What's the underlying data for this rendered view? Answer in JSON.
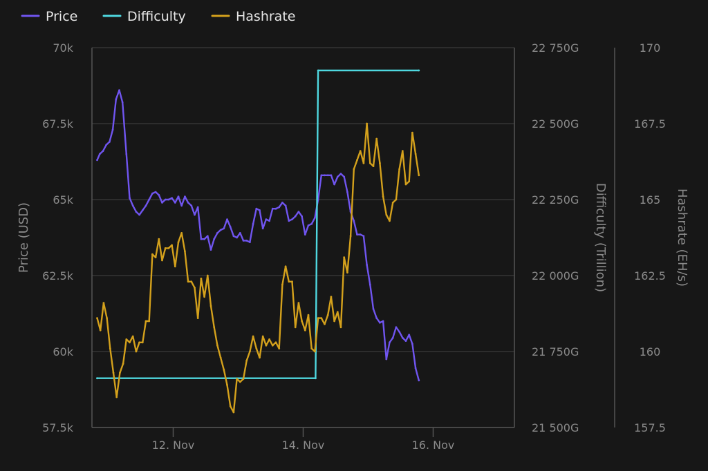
{
  "chart_data": {
    "type": "line",
    "title": "",
    "legend": {
      "position": "top-left",
      "entries": [
        {
          "name": "Price",
          "color": "#7055f0"
        },
        {
          "name": "Difficulty",
          "color": "#4fd8e0"
        },
        {
          "name": "Hashrate",
          "color": "#d4a11c"
        }
      ]
    },
    "x_axis": {
      "ticks": [
        {
          "label": "12. Nov",
          "day": 12
        },
        {
          "label": "14. Nov",
          "day": 14
        },
        {
          "label": "16. Nov",
          "day": 16
        }
      ],
      "range": [
        "10 Nov 18:00",
        "17 Nov 06:00"
      ]
    },
    "y_axes": {
      "price": {
        "title": "Price (USD)",
        "range": [
          57500,
          70000
        ],
        "ticks": [
          {
            "v": 57500,
            "label": "57.5k"
          },
          {
            "v": 60000,
            "label": "60k"
          },
          {
            "v": 62500,
            "label": "62.5k"
          },
          {
            "v": 65000,
            "label": "65k"
          },
          {
            "v": 67500,
            "label": "67.5k"
          },
          {
            "v": 70000,
            "label": "70k"
          }
        ]
      },
      "difficulty": {
        "title": "Difficulty (Trillion)",
        "range": [
          21500,
          22750
        ],
        "ticks": [
          {
            "v": 21500,
            "label": "21 500G"
          },
          {
            "v": 21750,
            "label": "21 750G"
          },
          {
            "v": 22000,
            "label": "22 000G"
          },
          {
            "v": 22250,
            "label": "22 250G"
          },
          {
            "v": 22500,
            "label": "22 500G"
          },
          {
            "v": 22750,
            "label": "22 750G"
          }
        ]
      },
      "hashrate": {
        "title": "Hashrate (EH/s)",
        "range": [
          157.5,
          170
        ],
        "ticks": [
          {
            "v": 157.5,
            "label": "157.5"
          },
          {
            "v": 160,
            "label": "160"
          },
          {
            "v": 162.5,
            "label": "162.5"
          },
          {
            "v": 165,
            "label": "165"
          },
          {
            "v": 167.5,
            "label": "167.5"
          },
          {
            "v": 170,
            "label": "170"
          }
        ]
      }
    },
    "grid": true,
    "series": [
      {
        "name": "Price",
        "axis": "price",
        "color": "#7055f0",
        "points": [
          [
            10.83,
            66300
          ],
          [
            10.87,
            66500
          ],
          [
            10.92,
            66600
          ],
          [
            10.97,
            66800
          ],
          [
            11.02,
            66900
          ],
          [
            11.07,
            67300
          ],
          [
            11.12,
            68300
          ],
          [
            11.17,
            68600
          ],
          [
            11.22,
            68200
          ],
          [
            11.28,
            66500
          ],
          [
            11.33,
            65050
          ],
          [
            11.38,
            64800
          ],
          [
            11.43,
            64600
          ],
          [
            11.48,
            64500
          ],
          [
            11.53,
            64650
          ],
          [
            11.58,
            64800
          ],
          [
            11.63,
            65000
          ],
          [
            11.68,
            65200
          ],
          [
            11.73,
            65250
          ],
          [
            11.78,
            65150
          ],
          [
            11.83,
            64900
          ],
          [
            11.88,
            65000
          ],
          [
            11.93,
            65000
          ],
          [
            11.98,
            65050
          ],
          [
            12.03,
            64900
          ],
          [
            12.08,
            65100
          ],
          [
            12.13,
            64800
          ],
          [
            12.18,
            65100
          ],
          [
            12.23,
            64900
          ],
          [
            12.28,
            64800
          ],
          [
            12.33,
            64500
          ],
          [
            12.38,
            64750
          ],
          [
            12.43,
            63700
          ],
          [
            12.48,
            63700
          ],
          [
            12.53,
            63800
          ],
          [
            12.58,
            63350
          ],
          [
            12.63,
            63700
          ],
          [
            12.68,
            63900
          ],
          [
            12.73,
            64000
          ],
          [
            12.78,
            64050
          ],
          [
            12.83,
            64350
          ],
          [
            12.88,
            64100
          ],
          [
            12.93,
            63800
          ],
          [
            12.98,
            63750
          ],
          [
            13.03,
            63900
          ],
          [
            13.08,
            63650
          ],
          [
            13.13,
            63650
          ],
          [
            13.18,
            63600
          ],
          [
            13.23,
            64200
          ],
          [
            13.28,
            64700
          ],
          [
            13.33,
            64650
          ],
          [
            13.38,
            64050
          ],
          [
            13.43,
            64350
          ],
          [
            13.48,
            64300
          ],
          [
            13.53,
            64700
          ],
          [
            13.58,
            64700
          ],
          [
            13.63,
            64750
          ],
          [
            13.68,
            64900
          ],
          [
            13.73,
            64800
          ],
          [
            13.78,
            64300
          ],
          [
            13.83,
            64350
          ],
          [
            13.88,
            64450
          ],
          [
            13.93,
            64600
          ],
          [
            13.98,
            64450
          ],
          [
            14.03,
            63850
          ],
          [
            14.08,
            64150
          ],
          [
            14.13,
            64200
          ],
          [
            14.18,
            64400
          ],
          [
            14.23,
            65000
          ],
          [
            14.28,
            65800
          ],
          [
            14.33,
            65800
          ],
          [
            14.38,
            65800
          ],
          [
            14.43,
            65800
          ],
          [
            14.48,
            65500
          ],
          [
            14.53,
            65750
          ],
          [
            14.58,
            65850
          ],
          [
            14.63,
            65750
          ],
          [
            14.68,
            65250
          ],
          [
            14.73,
            64600
          ],
          [
            14.78,
            64300
          ],
          [
            14.83,
            63850
          ],
          [
            14.88,
            63850
          ],
          [
            14.93,
            63800
          ],
          [
            14.98,
            62850
          ],
          [
            15.03,
            62200
          ],
          [
            15.08,
            61400
          ],
          [
            15.13,
            61100
          ],
          [
            15.18,
            60950
          ],
          [
            15.23,
            61000
          ],
          [
            15.28,
            59750
          ],
          [
            15.33,
            60300
          ],
          [
            15.38,
            60450
          ],
          [
            15.43,
            60800
          ],
          [
            15.48,
            60650
          ],
          [
            15.53,
            60450
          ],
          [
            15.58,
            60350
          ],
          [
            15.63,
            60550
          ],
          [
            15.68,
            60250
          ],
          [
            15.73,
            59450
          ],
          [
            15.78,
            59050
          ]
        ]
      },
      {
        "name": "Difficulty",
        "axis": "difficulty",
        "color": "#4fd8e0",
        "points": [
          [
            10.83,
            21662
          ],
          [
            14.19,
            21662
          ],
          [
            14.23,
            22675
          ],
          [
            15.78,
            22675
          ]
        ]
      },
      {
        "name": "Hashrate",
        "axis": "hashrate",
        "color": "#d4a11c",
        "points": [
          [
            10.83,
            161.1
          ],
          [
            10.88,
            160.7
          ],
          [
            10.93,
            161.6
          ],
          [
            10.98,
            161.1
          ],
          [
            11.03,
            160.1
          ],
          [
            11.08,
            159.3
          ],
          [
            11.13,
            158.5
          ],
          [
            11.18,
            159.3
          ],
          [
            11.23,
            159.6
          ],
          [
            11.28,
            160.4
          ],
          [
            11.33,
            160.3
          ],
          [
            11.38,
            160.5
          ],
          [
            11.43,
            160.0
          ],
          [
            11.48,
            160.3
          ],
          [
            11.53,
            160.3
          ],
          [
            11.58,
            161.0
          ],
          [
            11.63,
            161.0
          ],
          [
            11.68,
            163.2
          ],
          [
            11.73,
            163.1
          ],
          [
            11.78,
            163.7
          ],
          [
            11.83,
            163.0
          ],
          [
            11.88,
            163.4
          ],
          [
            11.93,
            163.4
          ],
          [
            11.98,
            163.5
          ],
          [
            12.03,
            162.8
          ],
          [
            12.08,
            163.6
          ],
          [
            12.13,
            163.9
          ],
          [
            12.18,
            163.3
          ],
          [
            12.23,
            162.3
          ],
          [
            12.28,
            162.3
          ],
          [
            12.33,
            162.1
          ],
          [
            12.38,
            161.1
          ],
          [
            12.43,
            162.4
          ],
          [
            12.48,
            161.8
          ],
          [
            12.53,
            162.5
          ],
          [
            12.58,
            161.5
          ],
          [
            12.63,
            160.8
          ],
          [
            12.68,
            160.2
          ],
          [
            12.73,
            159.8
          ],
          [
            12.78,
            159.4
          ],
          [
            12.83,
            158.9
          ],
          [
            12.88,
            158.2
          ],
          [
            12.93,
            158.0
          ],
          [
            12.98,
            159.1
          ],
          [
            13.03,
            159.0
          ],
          [
            13.08,
            159.1
          ],
          [
            13.13,
            159.7
          ],
          [
            13.18,
            160.0
          ],
          [
            13.23,
            160.5
          ],
          [
            13.28,
            160.1
          ],
          [
            13.33,
            159.8
          ],
          [
            13.38,
            160.5
          ],
          [
            13.43,
            160.2
          ],
          [
            13.48,
            160.4
          ],
          [
            13.53,
            160.2
          ],
          [
            13.58,
            160.3
          ],
          [
            13.63,
            160.1
          ],
          [
            13.68,
            162.2
          ],
          [
            13.73,
            162.8
          ],
          [
            13.78,
            162.3
          ],
          [
            13.83,
            162.3
          ],
          [
            13.88,
            160.8
          ],
          [
            13.93,
            161.6
          ],
          [
            13.98,
            161.0
          ],
          [
            14.03,
            160.7
          ],
          [
            14.08,
            161.2
          ],
          [
            14.13,
            160.1
          ],
          [
            14.18,
            160.0
          ],
          [
            14.23,
            161.1
          ],
          [
            14.28,
            161.1
          ],
          [
            14.33,
            160.9
          ],
          [
            14.38,
            161.2
          ],
          [
            14.43,
            161.8
          ],
          [
            14.48,
            161.0
          ],
          [
            14.53,
            161.3
          ],
          [
            14.58,
            160.8
          ],
          [
            14.63,
            163.1
          ],
          [
            14.68,
            162.6
          ],
          [
            14.73,
            163.8
          ],
          [
            14.78,
            166.0
          ],
          [
            14.83,
            166.3
          ],
          [
            14.88,
            166.6
          ],
          [
            14.93,
            166.2
          ],
          [
            14.98,
            167.5
          ],
          [
            15.03,
            166.2
          ],
          [
            15.08,
            166.1
          ],
          [
            15.13,
            167.0
          ],
          [
            15.18,
            166.2
          ],
          [
            15.23,
            165.1
          ],
          [
            15.28,
            164.5
          ],
          [
            15.33,
            164.3
          ],
          [
            15.38,
            164.9
          ],
          [
            15.43,
            165.0
          ],
          [
            15.48,
            166.0
          ],
          [
            15.53,
            166.6
          ],
          [
            15.58,
            165.5
          ],
          [
            15.63,
            165.6
          ],
          [
            15.68,
            167.2
          ],
          [
            15.73,
            166.5
          ],
          [
            15.78,
            165.8
          ]
        ]
      }
    ]
  }
}
